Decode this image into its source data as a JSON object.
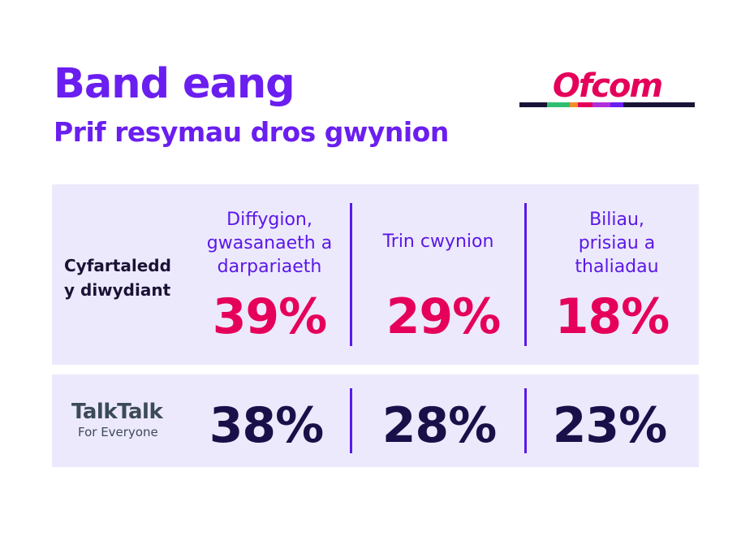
{
  "header": {
    "title": "Band eang",
    "subtitle": "Prif resymau dros gwynion"
  },
  "logo": {
    "text": "Ofcom",
    "stripe_colors": [
      "#1b1336",
      "#2fbf71",
      "#f28c28",
      "#e5005a",
      "#b02fd8",
      "#6a1ef0",
      "#1b1336"
    ]
  },
  "colors": {
    "accent": "#6a1ef0",
    "industry_values": "#e5005a",
    "provider_values": "#1a1049",
    "panel_bg": "#ede9fc"
  },
  "chart_data": {
    "type": "table",
    "categories": [
      [
        "Diffygion,",
        "gwasanaeth a",
        "darpariaeth"
      ],
      [
        "Trin cwynion"
      ],
      [
        "Biliau,",
        "prisiau a",
        "thaliadau"
      ]
    ],
    "series": [
      {
        "name": "Cyfartaledd y diwydiant",
        "label_lines": [
          "Cyfartaledd",
          "y diwydiant"
        ],
        "values": [
          "39%",
          "29%",
          "18%"
        ]
      },
      {
        "name": "TalkTalk",
        "brand": "TalkTalk",
        "tagline": "For Everyone",
        "values": [
          "38%",
          "28%",
          "23%"
        ]
      }
    ]
  }
}
